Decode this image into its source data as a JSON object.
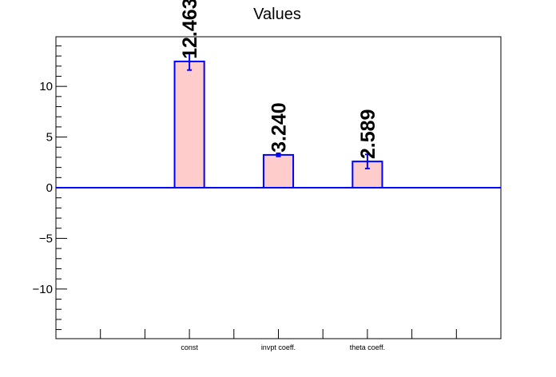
{
  "chart_data": {
    "type": "bar",
    "title": "Values",
    "categories": [
      "const",
      "invpt coeff.",
      "theta coeff."
    ],
    "values": [
      12.463,
      3.24,
      2.589
    ],
    "value_labels": [
      "12.463",
      "3.240",
      "2.589"
    ],
    "errors": [
      0.85,
      0.15,
      0.7
    ],
    "ylim": [
      -14.9,
      14.9
    ],
    "yticks": [
      -10,
      -5,
      0,
      5,
      10
    ],
    "ytick_labels": [
      "−10",
      "−5",
      "0",
      "5",
      "10"
    ],
    "grid": false,
    "legend": "none",
    "colors": {
      "bar_fill": "#ffcccc",
      "bar_edge": "#0000ff",
      "baseline": "#0000ff",
      "axis": "#000000"
    }
  }
}
